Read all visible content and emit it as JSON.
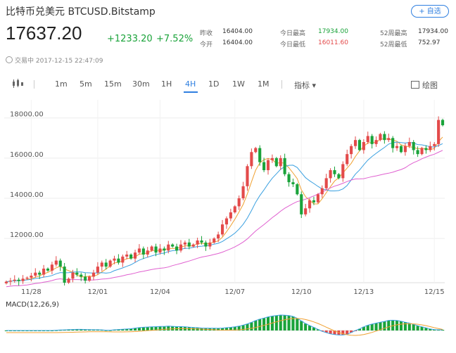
{
  "header": {
    "title": "比特币兑美元 BTCUSD.Bitstamp",
    "add_label": "+ 自选"
  },
  "quote": {
    "price": "17637.20",
    "change": "+1233.20",
    "change_pct": "+7.52%",
    "stats": [
      {
        "label": "昨收",
        "value": "16404.00"
      },
      {
        "label": "今开",
        "value": "16404.00"
      },
      {
        "label": "今日最高",
        "value": "17934.00"
      },
      {
        "label": "今日最低",
        "value": "16011.60"
      },
      {
        "label": "52周最高",
        "value": "17934.00"
      },
      {
        "label": "52周最低",
        "value": "752.97"
      }
    ],
    "status": "交易中 2017-12-15 22:47:09"
  },
  "toolbar": {
    "intervals": [
      "1m",
      "5m",
      "15m",
      "30m",
      "1H",
      "4H",
      "1D",
      "1W",
      "1M"
    ],
    "active_interval": "4H",
    "indicator_label": "指标 ▾",
    "draw_label": "绘图"
  },
  "chart_data": {
    "type": "candlestick",
    "y_ticks": [
      "18000.00",
      "16000.00",
      "14000.00",
      "12000.00"
    ],
    "y_tick_values": [
      18000,
      16000,
      14000,
      12000
    ],
    "ylim": [
      9800,
      18900
    ],
    "x_ticks": [
      "11/28",
      "12/01",
      "12/04",
      "12/07",
      "12/10",
      "12/13",
      "12/15"
    ],
    "closes": [
      9850,
      9900,
      9950,
      9880,
      10000,
      10050,
      10150,
      10300,
      10200,
      10500,
      10400,
      10700,
      10900,
      10600,
      9800,
      10000,
      10300,
      10200,
      10100,
      9900,
      10100,
      10300,
      10600,
      10800,
      10600,
      10900,
      11000,
      10800,
      11100,
      11200,
      11000,
      11300,
      11500,
      11200,
      11400,
      11600,
      11300,
      11500,
      11400,
      11700,
      11600,
      11400,
      11700,
      11800,
      11600,
      11700,
      11900,
      11800,
      11600,
      11800,
      12000,
      12200,
      12700,
      13000,
      13300,
      13600,
      14000,
      14600,
      15600,
      16300,
      16500,
      15800,
      15400,
      15900,
      16000,
      15600,
      16000,
      15200,
      14800,
      14700,
      14200,
      13200,
      13500,
      13900,
      13800,
      14200,
      14500,
      15000,
      15400,
      15200,
      15000,
      15700,
      16200,
      16600,
      16900,
      16400,
      16800,
      17100,
      16700,
      16900,
      17200,
      16900,
      17000,
      16500,
      16600,
      16300,
      16600,
      16800,
      16400,
      16200,
      16500,
      16400,
      16600,
      16700,
      17900,
      17637
    ],
    "macd_label": "MACD(12,26,9)"
  },
  "colors": {
    "up": "#e34a4a",
    "down": "#1aa33a",
    "accent": "#2f7fe0",
    "ma_fast": "#f0a030",
    "ma_mid": "#3aa0e0",
    "ma_slow": "#e060d0"
  }
}
